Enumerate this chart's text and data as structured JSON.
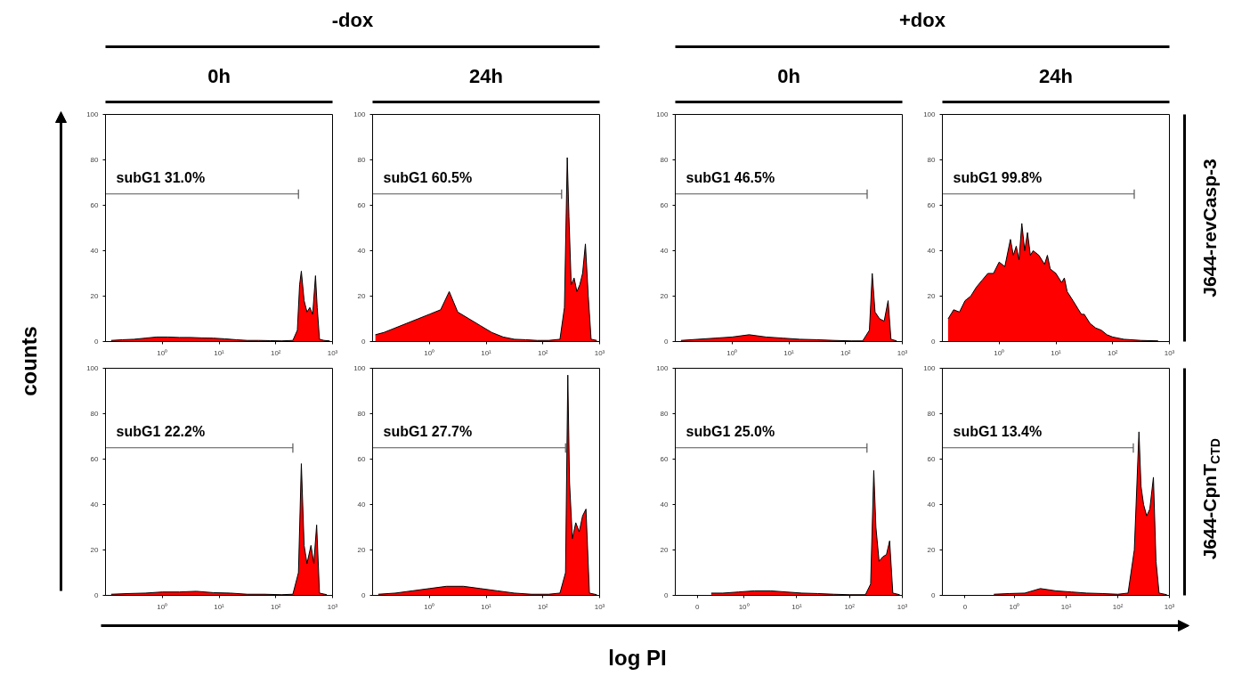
{
  "chart_data": [
    {
      "type": "area",
      "title": "0h",
      "annotations": [
        "-dox"
      ],
      "log": "x",
      "xlim": [
        0.1,
        1000
      ],
      "xticks": [
        {
          "value": 1,
          "label": "10⁰"
        },
        {
          "value": 10,
          "label": "10¹"
        },
        {
          "value": 100,
          "label": "10²"
        },
        {
          "value": 1000,
          "label": "10³"
        }
      ],
      "ylim": [
        0,
        100
      ],
      "yticks": [
        0,
        20,
        40,
        60,
        80,
        100
      ],
      "ylabel": "counts",
      "series": [
        {
          "type": "line",
          "name": "subG1 31.0%",
          "color": "#555555",
          "x": [
            0.1,
            251,
            251,
            251
          ],
          "values": [
            65,
            65,
            63,
            67
          ]
        },
        {
          "color": "#ff0000",
          "x": [
            0.126,
            0.2,
            0.316,
            0.501,
            0.794,
            1.26,
            2,
            3.16,
            5.01,
            7.94,
            12.6,
            20,
            31.6,
            50.1,
            79.4,
            126,
            200,
            240,
            263,
            282,
            316,
            355,
            398,
            447,
            501,
            537,
            589,
            708,
            891
          ],
          "values": [
            0.5,
            0.8,
            1,
            1.5,
            2,
            2,
            1.8,
            1.8,
            1.6,
            1.5,
            1.2,
            0.8,
            0.5,
            0.5,
            0.4,
            0.3,
            0.5,
            5,
            25,
            31,
            18,
            13,
            15,
            12,
            29,
            15,
            1,
            0.5,
            0.3
          ]
        }
      ]
    },
    {
      "type": "area",
      "title": "24h",
      "log": "x",
      "xlim": [
        0.1,
        1000
      ],
      "xticks": [
        {
          "value": 1,
          "label": "10⁰"
        },
        {
          "value": 10,
          "label": "10¹"
        },
        {
          "value": 100,
          "label": "10²"
        },
        {
          "value": 1000,
          "label": "10³"
        }
      ],
      "ylim": [
        0,
        100
      ],
      "yticks": [
        0,
        20,
        40,
        60,
        80,
        100
      ],
      "series": [
        {
          "type": "line",
          "name": "subG1 60.5%",
          "color": "#555555",
          "x": [
            0.1,
            214,
            214,
            214
          ],
          "values": [
            65,
            65,
            63,
            67
          ]
        },
        {
          "color": "#ff0000",
          "x": [
            0.112,
            0.158,
            0.251,
            0.398,
            0.631,
            1,
            1.58,
            2.24,
            3.16,
            5.01,
            7.94,
            12.6,
            20,
            31.6,
            50.1,
            79.4,
            126,
            200,
            240,
            269,
            288,
            316,
            355,
            398,
            447,
            501,
            562,
            631,
            708,
            891
          ],
          "values": [
            3,
            4,
            6,
            8,
            10,
            12,
            14,
            22,
            13,
            10,
            7,
            4,
            2,
            1,
            0.8,
            0.5,
            0.5,
            1,
            15,
            81,
            55,
            25,
            28,
            22,
            25,
            30,
            43,
            20,
            1,
            0.5
          ]
        }
      ]
    },
    {
      "type": "area",
      "title": "0h",
      "annotations": [
        "+dox"
      ],
      "log": "x",
      "xlim": [
        0.1,
        1000
      ],
      "xticks": [
        {
          "value": 1,
          "label": "10⁰"
        },
        {
          "value": 10,
          "label": "10¹"
        },
        {
          "value": 100,
          "label": "10²"
        },
        {
          "value": 1000,
          "label": "10³"
        }
      ],
      "ylim": [
        0,
        100
      ],
      "yticks": [
        0,
        20,
        40,
        60,
        80,
        100
      ],
      "series": [
        {
          "type": "line",
          "name": "subG1 46.5%",
          "color": "#555555",
          "x": [
            0.1,
            240,
            240,
            240
          ],
          "values": [
            65,
            65,
            63,
            67
          ]
        },
        {
          "color": "#ff0000",
          "x": [
            0.126,
            0.251,
            0.501,
            1,
            2,
            3.98,
            7.94,
            15.8,
            31.6,
            63.1,
            126,
            200,
            263,
            295,
            331,
            398,
            479,
            562,
            631,
            794
          ],
          "values": [
            0.5,
            1,
            1.5,
            2,
            3,
            2,
            1.5,
            1,
            0.8,
            0.5,
            0.3,
            0.3,
            5,
            30,
            13,
            10,
            9,
            18,
            1,
            0.3
          ]
        }
      ]
    },
    {
      "type": "area",
      "title": "24h",
      "y2label": "J644-revCasp-3",
      "log": "x",
      "xlim": [
        0.1,
        1000
      ],
      "xticks": [
        {
          "value": 1,
          "label": "10⁰"
        },
        {
          "value": 10,
          "label": "10¹"
        },
        {
          "value": 100,
          "label": "10²"
        },
        {
          "value": 1000,
          "label": "10³"
        }
      ],
      "ylim": [
        0,
        100
      ],
      "yticks": [
        0,
        20,
        40,
        60,
        80,
        100
      ],
      "series": [
        {
          "type": "line",
          "name": "subG1 99.8%",
          "color": "#555555",
          "x": [
            0.1,
            240,
            240,
            240
          ],
          "values": [
            65,
            65,
            63,
            67
          ]
        },
        {
          "color": "#ff0000",
          "x": [
            0.126,
            0.158,
            0.2,
            0.251,
            0.316,
            0.398,
            0.501,
            0.631,
            0.794,
            1,
            1.26,
            1.58,
            1.78,
            2,
            2.24,
            2.51,
            2.82,
            3.16,
            3.55,
            3.98,
            5.01,
            6.31,
            7.08,
            7.94,
            10,
            12.6,
            14.1,
            15.8,
            20,
            25.1,
            28.2,
            31.6,
            39.8,
            50.1,
            63.1,
            79.4,
            100,
            158,
            316,
            631
          ],
          "values": [
            10,
            14,
            13,
            18,
            20,
            24,
            27,
            30,
            30,
            35,
            33,
            45,
            38,
            42,
            36,
            52,
            40,
            48,
            38,
            40,
            38,
            34,
            38,
            32,
            30,
            26,
            28,
            22,
            18,
            14,
            12,
            12,
            8,
            6,
            5,
            3,
            2,
            1,
            0.5,
            0.3
          ]
        }
      ]
    },
    {
      "type": "area",
      "annotations": [
        "log PI"
      ],
      "log": "x",
      "xlim": [
        0.1,
        1000
      ],
      "xticks": [
        {
          "value": 1,
          "label": "10⁰"
        },
        {
          "value": 10,
          "label": "10¹"
        },
        {
          "value": 100,
          "label": "10²"
        },
        {
          "value": 1000,
          "label": "10³"
        }
      ],
      "ylim": [
        0,
        100
      ],
      "yticks": [
        0,
        20,
        40,
        60,
        80,
        100
      ],
      "series": [
        {
          "type": "line",
          "name": "subG1 22.2%",
          "color": "#555555",
          "x": [
            0.1,
            200,
            200,
            200
          ],
          "values": [
            65,
            65,
            63,
            67
          ]
        },
        {
          "color": "#ff0000",
          "x": [
            0.126,
            0.251,
            0.501,
            1,
            2,
            3.98,
            7.94,
            15.8,
            31.6,
            63.1,
            126,
            200,
            251,
            282,
            316,
            355,
            417,
            468,
            525,
            589,
            794
          ],
          "values": [
            0.5,
            0.8,
            1,
            1.5,
            1.5,
            1.8,
            1.2,
            1,
            0.5,
            0.5,
            0.3,
            0.5,
            10,
            58,
            22,
            14,
            22,
            14,
            31,
            1,
            0.3
          ]
        }
      ]
    },
    {
      "type": "area",
      "log": "x",
      "xlim": [
        0.1,
        1000
      ],
      "xticks": [
        {
          "value": 1,
          "label": "10⁰"
        },
        {
          "value": 10,
          "label": "10¹"
        },
        {
          "value": 100,
          "label": "10²"
        },
        {
          "value": 1000,
          "label": "10³"
        }
      ],
      "ylim": [
        0,
        100
      ],
      "yticks": [
        0,
        20,
        40,
        60,
        80,
        100
      ],
      "series": [
        {
          "type": "line",
          "name": "subG1 27.7%",
          "color": "#555555",
          "x": [
            0.1,
            251,
            251,
            251
          ],
          "values": [
            65,
            65,
            63,
            67
          ]
        },
        {
          "color": "#ff0000",
          "x": [
            0.126,
            0.251,
            0.501,
            1,
            2,
            3.98,
            7.94,
            15.8,
            31.6,
            63.1,
            126,
            200,
            251,
            275,
            295,
            331,
            380,
            437,
            501,
            575,
            661,
            891
          ],
          "values": [
            0.5,
            1,
            2,
            3,
            4,
            4,
            3,
            2,
            1,
            0.5,
            0.5,
            1,
            10,
            97,
            50,
            25,
            32,
            28,
            35,
            38,
            1,
            0.3
          ]
        }
      ]
    },
    {
      "type": "area",
      "log": "x",
      "xlim": [
        0.05,
        1000
      ],
      "xticks": [
        {
          "value": 0.13,
          "label": "0"
        },
        {
          "value": 1,
          "label": "10⁰"
        },
        {
          "value": 10,
          "label": "10¹"
        },
        {
          "value": 100,
          "label": "10²"
        },
        {
          "value": 1000,
          "label": "10³"
        }
      ],
      "ylim": [
        0,
        100
      ],
      "yticks": [
        0,
        20,
        40,
        60,
        80,
        100
      ],
      "series": [
        {
          "type": "line",
          "name": "subG1 25.0%",
          "color": "#555555",
          "x": [
            0.05,
            214,
            214,
            214
          ],
          "values": [
            65,
            65,
            63,
            67
          ]
        },
        {
          "color": "#ff0000",
          "x": [
            0.24,
            0.398,
            0.794,
            1.58,
            3.16,
            6.31,
            12.6,
            25.1,
            50.1,
            100,
            200,
            251,
            288,
            316,
            363,
            427,
            501,
            575,
            661,
            891
          ],
          "values": [
            1,
            1,
            1.5,
            2,
            2,
            1.5,
            1,
            0.8,
            0.5,
            0.3,
            0.3,
            5,
            55,
            30,
            15,
            17,
            18,
            24,
            1,
            0.3
          ]
        }
      ]
    },
    {
      "type": "area",
      "y2label": "J644-CpnT$_{CTD}$",
      "log": "x",
      "xlim": [
        0.04,
        1000
      ],
      "xticks": [
        {
          "value": 0.11,
          "label": "0"
        },
        {
          "value": 1,
          "label": "10⁰"
        },
        {
          "value": 10,
          "label": "10¹"
        },
        {
          "value": 100,
          "label": "10²"
        },
        {
          "value": 1000,
          "label": "10³"
        }
      ],
      "ylim": [
        0,
        100
      ],
      "yticks": [
        0,
        20,
        40,
        60,
        80,
        100
      ],
      "series": [
        {
          "type": "line",
          "name": "subG1 13.4%",
          "color": "#555555",
          "x": [
            0.04,
            200,
            200,
            200
          ],
          "values": [
            65,
            65,
            63,
            67
          ]
        },
        {
          "color": "#ff0000",
          "x": [
            0.398,
            0.794,
            1.58,
            3.16,
            6.31,
            12.6,
            25.1,
            50.1,
            100,
            158,
            209,
            257,
            282,
            316,
            363,
            417,
            490,
            550,
            631,
            891
          ],
          "values": [
            0.5,
            0.8,
            1,
            3,
            2,
            1.5,
            1,
            0.8,
            0.5,
            1,
            20,
            72,
            48,
            40,
            35,
            38,
            52,
            15,
            1,
            0.3
          ]
        }
      ]
    }
  ]
}
